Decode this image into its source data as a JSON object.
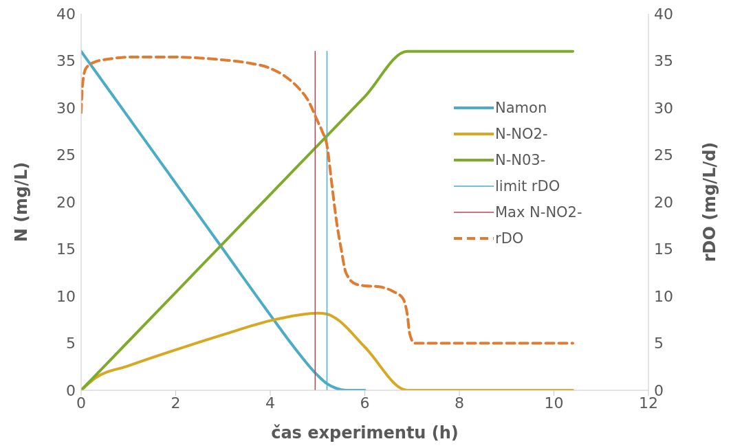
{
  "chart_data": {
    "type": "line",
    "xlabel": "čas experimentu (h)",
    "ylabel": "N (mg/L)",
    "y2label": "rDO (mg/L/d)",
    "xlim": [
      0,
      12
    ],
    "xticks": [
      0,
      2,
      4,
      6,
      8,
      10,
      12
    ],
    "ylim": [
      0,
      40
    ],
    "yticks": [
      0,
      5,
      10,
      15,
      20,
      25,
      30,
      35,
      40
    ],
    "y2lim": [
      0,
      40
    ],
    "y2ticks": [
      0,
      5,
      10,
      15,
      20,
      25,
      30,
      35,
      40
    ],
    "grid": false,
    "legend": "right",
    "marker": "none",
    "series": [
      {
        "name": "Namon",
        "color": "#4aacc5",
        "line_style": "solid",
        "x": [
          0,
          1,
          2,
          3,
          4,
          4.5,
          5,
          5.2,
          5.4,
          5.6,
          6
        ],
        "values": [
          36,
          29,
          22,
          15,
          8,
          4.6,
          1.6,
          0.7,
          0.2,
          0,
          0
        ]
      },
      {
        "name": "N-NO2-",
        "color": "#d6a823",
        "line_style": "solid",
        "x": [
          0,
          0.3,
          1,
          2,
          3,
          4,
          4.6,
          5,
          5.2,
          5.4,
          6,
          6.9,
          8,
          9,
          10,
          10.4
        ],
        "values": [
          0,
          1.3,
          2.6,
          4.3,
          5.9,
          7.4,
          8.0,
          8.2,
          8.1,
          7.6,
          4.6,
          0,
          0,
          0,
          0,
          0
        ]
      },
      {
        "name": "N-N03-",
        "color": "#7faa2b",
        "line_style": "solid",
        "x": [
          0,
          1,
          2,
          3,
          4,
          5,
          6,
          6.9,
          8,
          9,
          10,
          10.4
        ],
        "values": [
          0,
          5.2,
          10.4,
          15.6,
          20.8,
          26,
          31.2,
          36,
          36,
          36,
          36,
          36
        ]
      },
      {
        "name": "limit rDO",
        "color": "#4aacc5",
        "line_style": "solid",
        "x": [
          5.2,
          5.2
        ],
        "values": [
          0,
          36
        ]
      },
      {
        "name": "Max N-NO2-",
        "color": "#b5475a",
        "line_style": "solid",
        "x": [
          4.95,
          4.95
        ],
        "values": [
          0,
          36
        ]
      },
      {
        "name": "rDO",
        "color": "#e07b32",
        "line_style": "dashed",
        "axis": "y2",
        "x": [
          0,
          0.03,
          0.1,
          0.3,
          0.6,
          1,
          1.5,
          2,
          2.5,
          3,
          3.5,
          4,
          4.3,
          4.6,
          4.8,
          5,
          5.1,
          5.2,
          5.3,
          5.4,
          5.5,
          5.6,
          5.8,
          6,
          6.3,
          6.6,
          6.8,
          6.9,
          6.95,
          7.05,
          8,
          9,
          10,
          10.4
        ],
        "values": [
          29.5,
          32.5,
          34.2,
          34.9,
          35.2,
          35.4,
          35.4,
          35.4,
          35.3,
          35.1,
          34.8,
          34.2,
          33.4,
          32.1,
          30.8,
          28.6,
          27.5,
          26,
          22,
          18,
          15,
          12.5,
          11.3,
          11.1,
          11,
          10.5,
          9.8,
          8,
          6,
          5,
          5,
          5,
          5,
          5
        ]
      }
    ]
  }
}
